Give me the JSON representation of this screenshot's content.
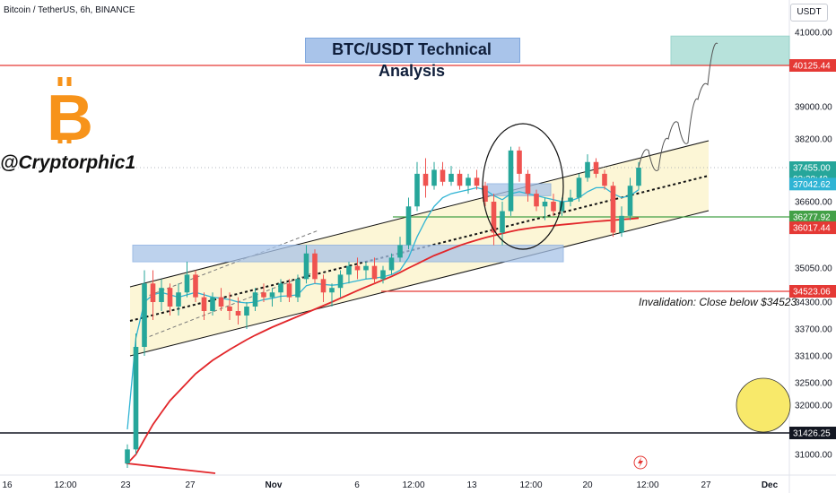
{
  "header": {
    "symbol": "Bitcoin / TetherUS, 6h, BINANCE",
    "unit": "USDT"
  },
  "title": "BTC/USDT Technical Analysis",
  "handle": "@Cryptorphic1",
  "logo": {
    "icon": "bitcoin-logo-icon",
    "glyph": "B",
    "color": "#f7931a"
  },
  "annotations": {
    "invalidation": "Invalidation: Close below $34523",
    "lightning_icon": "lightning-icon"
  },
  "colors": {
    "up": "#26a69a",
    "down": "#ef5350",
    "ema_fast": "#2fb4d4",
    "ma_slow": "#e2262a",
    "channel_fill": "#fbf4cc",
    "zone": "#a8c3e8",
    "target_zone": "#9fd9d0",
    "support": "#43a047",
    "resistance": "#e53935",
    "circle": "#f8e96a"
  },
  "chart_data": {
    "type": "candlestick",
    "title": "BTC/USDT Technical Analysis",
    "x_ticks": [
      "16",
      "12:00",
      "23",
      "27",
      "Nov",
      "6",
      "12:00",
      "13",
      "12:00",
      "20",
      "12:00",
      "27",
      "Dec"
    ],
    "y_ticks": [
      "41000.00",
      "39000.00",
      "38200.00",
      "36600.00",
      "35050.00",
      "34300.00",
      "33700.00",
      "33100.00",
      "32500.00",
      "32000.00",
      "31000.00"
    ],
    "y_range": [
      30700,
      41300
    ],
    "price_labels": [
      {
        "value": 40125.44,
        "text": "40125.44",
        "color": "#e53935"
      },
      {
        "value": 37455.0,
        "text": "37455.00",
        "color": "#26a69a"
      },
      {
        "value": 37176,
        "text": "02:28:49",
        "color": "#26a69a"
      },
      {
        "value": 37042.62,
        "text": "37042.62",
        "color": "#2fb4d4"
      },
      {
        "value": 36277.92,
        "text": "36277.92",
        "color": "#43a047"
      },
      {
        "value": 36017.44,
        "text": "36017.44",
        "color": "#e53935"
      },
      {
        "value": 34523.06,
        "text": "34523.06",
        "color": "#e53935"
      },
      {
        "value": 31426.25,
        "text": "31426.25",
        "color": "#131722"
      }
    ],
    "levels": [
      {
        "name": "target-resistance",
        "value": 40125.44,
        "color": "#e53935"
      },
      {
        "name": "support",
        "value": 36277.92,
        "color": "#43a047"
      },
      {
        "name": "invalidation",
        "value": 34523.06,
        "color": "#e53935"
      },
      {
        "name": "base",
        "value": 31426.25,
        "color": "#131722"
      }
    ],
    "candles": [
      [
        30800,
        31200,
        30600,
        31100
      ],
      [
        31100,
        33600,
        31000,
        33300
      ],
      [
        33300,
        35000,
        33100,
        34700
      ],
      [
        34700,
        35000,
        33900,
        34300
      ],
      [
        34300,
        34800,
        34100,
        34600
      ],
      [
        34600,
        34700,
        34000,
        34200
      ],
      [
        34200,
        34700,
        34000,
        34500
      ],
      [
        34500,
        35200,
        34400,
        34900
      ],
      [
        34900,
        35000,
        34300,
        34400
      ],
      [
        34400,
        34500,
        33900,
        34100
      ],
      [
        34100,
        34500,
        34000,
        34400
      ],
      [
        34400,
        34600,
        34100,
        34200
      ],
      [
        34200,
        34500,
        33900,
        34100
      ],
      [
        34100,
        34400,
        33800,
        34000
      ],
      [
        34000,
        34300,
        33700,
        34200
      ],
      [
        34200,
        34600,
        34100,
        34500
      ],
      [
        34500,
        34700,
        34300,
        34400
      ],
      [
        34400,
        34600,
        34200,
        34500
      ],
      [
        34500,
        34800,
        34300,
        34700
      ],
      [
        34700,
        34800,
        34300,
        34400
      ],
      [
        34400,
        34900,
        34300,
        34800
      ],
      [
        34800,
        35600,
        34700,
        35400
      ],
      [
        35400,
        35500,
        34700,
        34800
      ],
      [
        34800,
        34900,
        34300,
        34500
      ],
      [
        34500,
        34700,
        34200,
        34600
      ],
      [
        34600,
        35000,
        34400,
        34900
      ],
      [
        34900,
        35200,
        34700,
        35100
      ],
      [
        35100,
        35300,
        34800,
        35000
      ],
      [
        35000,
        35200,
        34800,
        35100
      ],
      [
        35100,
        35300,
        34700,
        34800
      ],
      [
        34800,
        35100,
        34700,
        35000
      ],
      [
        35000,
        35400,
        34900,
        35300
      ],
      [
        35300,
        35800,
        35200,
        35600
      ],
      [
        35600,
        36700,
        35500,
        36500
      ],
      [
        36500,
        37600,
        36400,
        37300
      ],
      [
        37300,
        37700,
        36700,
        37000
      ],
      [
        37000,
        37600,
        36900,
        37400
      ],
      [
        37400,
        37600,
        37000,
        37100
      ],
      [
        37100,
        37500,
        37000,
        37300
      ],
      [
        37300,
        37400,
        36900,
        37000
      ],
      [
        37000,
        37300,
        36800,
        37200
      ],
      [
        37200,
        37400,
        36900,
        37000
      ],
      [
        37000,
        37100,
        36500,
        36600
      ],
      [
        36600,
        36800,
        35600,
        35900
      ],
      [
        35900,
        36600,
        35600,
        36400
      ],
      [
        36400,
        38000,
        36300,
        37900
      ],
      [
        37900,
        38000,
        37100,
        37300
      ],
      [
        37300,
        37400,
        36600,
        36800
      ],
      [
        36800,
        36900,
        36400,
        36500
      ],
      [
        36500,
        36700,
        36200,
        36600
      ],
      [
        36600,
        36800,
        36300,
        36400
      ],
      [
        36400,
        36700,
        36300,
        36600
      ],
      [
        36600,
        36900,
        36500,
        36700
      ],
      [
        36700,
        37300,
        36600,
        37200
      ],
      [
        37200,
        37800,
        37100,
        37600
      ],
      [
        37600,
        37700,
        37200,
        37300
      ],
      [
        37300,
        37400,
        36900,
        37000
      ],
      [
        37000,
        37100,
        35800,
        35900
      ],
      [
        35900,
        36500,
        35800,
        36300
      ],
      [
        36300,
        37200,
        36200,
        37000
      ],
      [
        37000,
        37600,
        36900,
        37455
      ]
    ],
    "ema_fast": [
      31500,
      33500,
      34300,
      34450,
      34500,
      34450,
      34400,
      34450,
      34500,
      34450,
      34400,
      34380,
      34350,
      34300,
      34280,
      34300,
      34350,
      34380,
      34420,
      34430,
      34450,
      34650,
      34700,
      34680,
      34660,
      34680,
      34720,
      34760,
      34800,
      34820,
      34850,
      34900,
      35000,
      35300,
      35800,
      36200,
      36500,
      36700,
      36800,
      36850,
      36900,
      36950,
      36900,
      36750,
      36650,
      36800,
      36850,
      36800,
      36750,
      36700,
      36650,
      36600,
      36620,
      36700,
      36850,
      36950,
      36950,
      36800,
      36700,
      36750,
      36900
    ],
    "ma_slow": [
      30800,
      31000,
      31300,
      31600,
      31850,
      32100,
      32300,
      32500,
      32700,
      32850,
      33000,
      33120,
      33240,
      33350,
      33460,
      33560,
      33650,
      33740,
      33820,
      33900,
      33980,
      34060,
      34140,
      34220,
      34300,
      34380,
      34460,
      34540,
      34620,
      34700,
      34780,
      34860,
      34950,
      35050,
      35150,
      35250,
      35350,
      35430,
      35510,
      35590,
      35660,
      35720,
      35780,
      35830,
      35880,
      35930,
      35970,
      36000,
      36030,
      36050,
      36070,
      36090,
      36110,
      36130,
      36150,
      36170,
      36185,
      36200,
      36215,
      36230,
      36250
    ],
    "projection": [
      [
        37455,
        0
      ],
      [
        37900,
        1
      ],
      [
        37400,
        2
      ],
      [
        38200,
        3
      ],
      [
        38600,
        4
      ],
      [
        38100,
        5
      ],
      [
        39200,
        6
      ],
      [
        39600,
        7
      ],
      [
        40700,
        8
      ]
    ],
    "zones": [
      {
        "name": "demand-zone",
        "y_low": 35200,
        "y_high": 35600
      },
      {
        "name": "retest-zone",
        "y_low": 36750,
        "y_high": 37050
      },
      {
        "name": "target-zone",
        "y_low": 40125,
        "y_high": 40900
      }
    ]
  }
}
